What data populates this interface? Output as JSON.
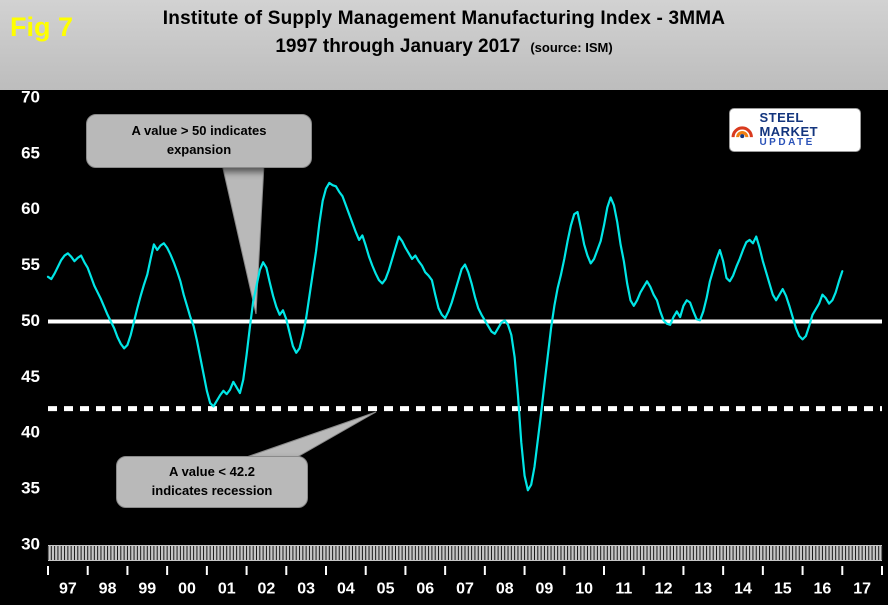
{
  "header": {
    "fig_label": "Fig 7",
    "title_line1": "Institute of Supply Management Manufacturing Index - 3MMA",
    "title_line2": "1997 through January 2017",
    "source": "(source: ISM)"
  },
  "callouts": {
    "expansion": {
      "line1": "A value > 50 indicates",
      "line2": "expansion"
    },
    "recession": {
      "line1": "A value < 42.2",
      "line2": "indicates recession"
    }
  },
  "logo": {
    "top_text": "STEEL MARKET",
    "bottom_text": "UPDATE"
  },
  "chart_data": {
    "type": "line",
    "title": "Institute of Supply Management Manufacturing Index - 3MMA",
    "subtitle": "1997 through January 2017",
    "source": "ISM",
    "xlabel": "",
    "ylabel": "",
    "ylim": [
      30,
      70
    ],
    "y_ticks": [
      70,
      65,
      60,
      55,
      50,
      45,
      40,
      35,
      30
    ],
    "x_tick_labels": [
      "97",
      "98",
      "99",
      "00",
      "01",
      "02",
      "03",
      "04",
      "05",
      "06",
      "07",
      "08",
      "09",
      "10",
      "11",
      "12",
      "13",
      "14",
      "15",
      "16",
      "17"
    ],
    "grid": false,
    "legend": false,
    "line_color": "#00e6e6",
    "reference_lines": [
      {
        "value": 50,
        "style": "solid",
        "color": "#ffffff",
        "meaning": "A value > 50 indicates expansion"
      },
      {
        "value": 42.2,
        "style": "dotted",
        "color": "#ffffff",
        "meaning": "A value < 42.2 indicates recession"
      }
    ],
    "x_start_label": "Jan 1997",
    "x_end_label": "Jan 2017",
    "values": [
      54.0,
      53.8,
      54.3,
      54.9,
      55.5,
      55.9,
      56.1,
      55.8,
      55.4,
      55.7,
      55.9,
      55.3,
      54.8,
      54.0,
      53.2,
      52.6,
      52.0,
      51.3,
      50.6,
      50.0,
      49.4,
      48.6,
      48.0,
      47.6,
      47.9,
      48.8,
      50.0,
      51.2,
      52.3,
      53.3,
      54.2,
      55.6,
      56.9,
      56.4,
      56.8,
      57.0,
      56.6,
      56.0,
      55.3,
      54.5,
      53.6,
      52.4,
      51.4,
      50.4,
      49.6,
      48.3,
      46.8,
      45.3,
      43.8,
      42.7,
      42.4,
      42.9,
      43.4,
      43.8,
      43.5,
      43.9,
      44.6,
      44.1,
      43.6,
      44.8,
      47.0,
      49.5,
      51.8,
      53.2,
      54.6,
      55.3,
      54.8,
      53.5,
      52.3,
      51.3,
      50.6,
      51.0,
      50.2,
      49.0,
      47.8,
      47.2,
      47.6,
      48.8,
      50.3,
      52.3,
      54.3,
      56.3,
      58.8,
      60.8,
      61.9,
      62.4,
      62.2,
      62.1,
      61.6,
      61.2,
      60.4,
      59.6,
      58.8,
      58.0,
      57.3,
      57.7,
      56.8,
      55.8,
      55.0,
      54.3,
      53.7,
      53.4,
      53.8,
      54.6,
      55.6,
      56.6,
      57.6,
      57.2,
      56.6,
      56.1,
      55.6,
      55.9,
      55.4,
      55.0,
      54.4,
      54.1,
      53.7,
      52.4,
      51.2,
      50.6,
      50.3,
      50.9,
      51.7,
      52.7,
      53.7,
      54.7,
      55.1,
      54.4,
      53.4,
      52.2,
      51.2,
      50.6,
      50.1,
      49.6,
      49.1,
      48.9,
      49.4,
      49.9,
      50.1,
      49.7,
      48.8,
      46.8,
      43.4,
      39.2,
      36.2,
      34.9,
      35.4,
      37.0,
      39.4,
      41.8,
      44.4,
      46.9,
      49.4,
      51.4,
      53.0,
      54.2,
      55.6,
      57.2,
      58.6,
      59.6,
      59.8,
      58.4,
      56.9,
      55.9,
      55.2,
      55.6,
      56.4,
      57.2,
      58.6,
      60.2,
      61.1,
      60.4,
      58.9,
      56.9,
      55.4,
      53.4,
      51.9,
      51.4,
      51.9,
      52.6,
      53.1,
      53.6,
      53.1,
      52.4,
      51.9,
      50.9,
      50.1,
      49.8,
      49.7,
      50.4,
      50.9,
      50.4,
      51.4,
      51.9,
      51.7,
      50.9,
      50.2,
      50.1,
      50.9,
      52.1,
      53.6,
      54.6,
      55.6,
      56.4,
      55.4,
      53.9,
      53.6,
      54.1,
      54.9,
      55.6,
      56.4,
      57.1,
      57.3,
      57.0,
      57.6,
      56.6,
      55.4,
      54.4,
      53.4,
      52.4,
      51.9,
      52.4,
      52.9,
      52.3,
      51.4,
      50.4,
      49.4,
      48.7,
      48.4,
      48.7,
      49.6,
      50.6,
      51.1,
      51.6,
      52.4,
      52.1,
      51.6,
      51.9,
      52.6,
      53.6,
      54.5
    ]
  }
}
